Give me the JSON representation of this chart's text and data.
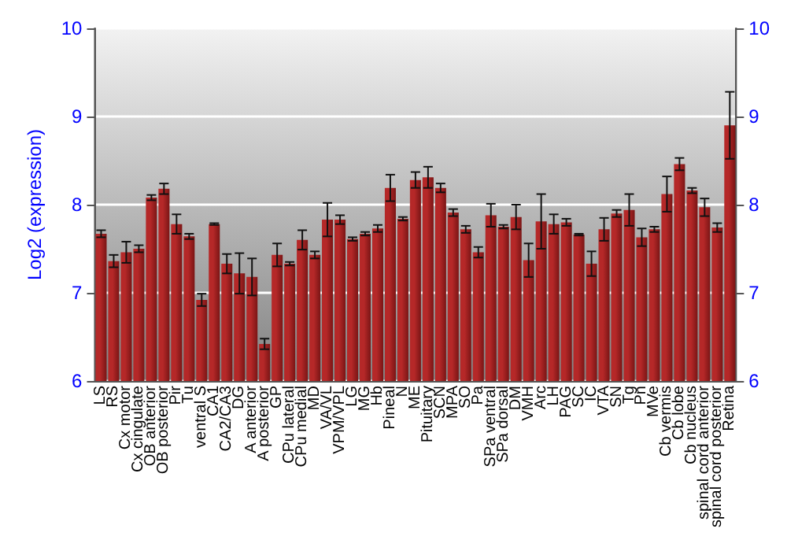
{
  "chart_data": {
    "type": "bar",
    "ylabel": "Log2 (expression)",
    "categories": [
      "LS",
      "RS",
      "Cx motor",
      "Cx cingulate",
      "OB anterior",
      "OB posterior",
      "Pir",
      "Tu",
      "ventral S",
      "CA1",
      "CA2/CA3",
      "DG",
      "A anterior",
      "A posterior",
      "GP",
      "CPu lateral",
      "CPu medial",
      "MD",
      "VA/VL",
      "VPM/VPL",
      "LG",
      "MG",
      "Hb",
      "Pineal",
      "N",
      "ME",
      "Pituitary",
      "SCN",
      "MPA",
      "SO",
      "Pa",
      "SPa ventral",
      "SPa dorsal",
      "DM",
      "VMH",
      "Arc",
      "LH",
      "PAG",
      "SC",
      "IC",
      "VTA",
      "SN",
      "Tg",
      "Pn",
      "MVe",
      "Cb vermis",
      "Cb lobe",
      "Cb nucleus",
      "spinal cord anterior",
      "spinal cord posterior",
      "Retina"
    ],
    "values": [
      7.67,
      7.36,
      7.46,
      7.5,
      8.08,
      8.18,
      7.78,
      7.64,
      6.92,
      7.78,
      7.33,
      7.22,
      7.18,
      6.42,
      7.43,
      7.33,
      7.6,
      7.43,
      7.83,
      7.83,
      7.61,
      7.67,
      7.73,
      8.19,
      7.84,
      8.28,
      8.31,
      8.19,
      7.91,
      7.72,
      7.46,
      7.88,
      7.75,
      7.86,
      7.37,
      7.81,
      7.78,
      7.8,
      7.66,
      7.33,
      7.72,
      7.9,
      7.94,
      7.63,
      7.72,
      8.12,
      8.46,
      8.16,
      7.97,
      7.74,
      8.9
    ],
    "errors": [
      0.04,
      0.07,
      0.12,
      0.04,
      0.03,
      0.06,
      0.11,
      0.03,
      0.07,
      0.01,
      0.11,
      0.23,
      0.21,
      0.06,
      0.13,
      0.02,
      0.11,
      0.04,
      0.19,
      0.05,
      0.02,
      0.02,
      0.04,
      0.15,
      0.02,
      0.09,
      0.12,
      0.05,
      0.04,
      0.04,
      0.06,
      0.13,
      0.02,
      0.14,
      0.19,
      0.31,
      0.11,
      0.04,
      0.01,
      0.14,
      0.13,
      0.04,
      0.18,
      0.1,
      0.03,
      0.2,
      0.07,
      0.03,
      0.1,
      0.05,
      0.38
    ],
    "color": "#b52828",
    "ylim": [
      6,
      10
    ],
    "yticks": [
      6,
      7,
      8,
      9,
      10
    ],
    "y2lim": [
      6,
      10
    ],
    "y2ticks": [
      6,
      7,
      8,
      9,
      10
    ],
    "grid": "y"
  }
}
